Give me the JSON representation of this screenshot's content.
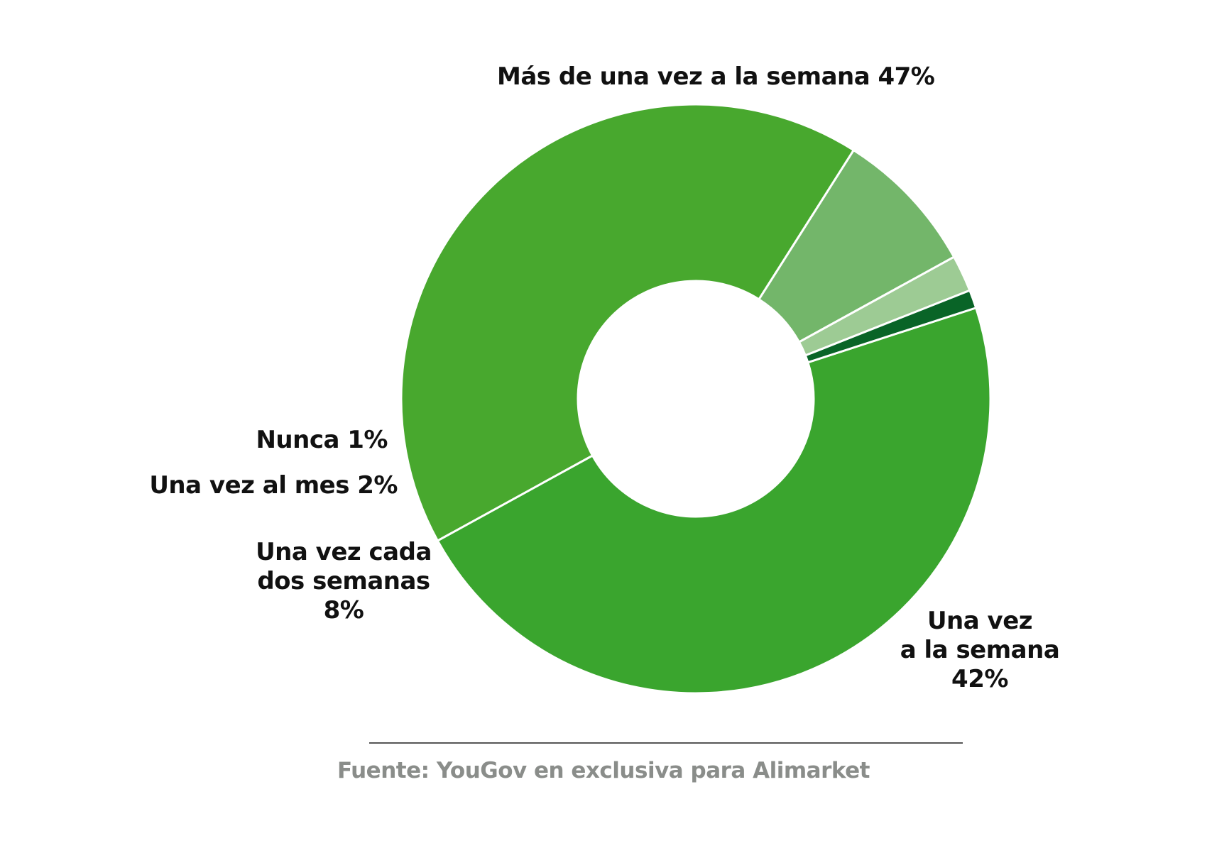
{
  "chart_data": {
    "type": "pie",
    "donut": true,
    "title": "",
    "slices": [
      {
        "label": "Más de una vez a la semana",
        "value": 47,
        "text": "Más de una vez a la semana 47%",
        "color": "#3aa52e"
      },
      {
        "label": "Una vez a la semana",
        "value": 42,
        "text_lines": [
          "Una vez",
          "a la semana",
          "42%"
        ],
        "color": "#48a82e"
      },
      {
        "label": "Una vez cada dos semanas",
        "value": 8,
        "text_lines": [
          "Una vez cada",
          "dos semanas",
          "8%"
        ],
        "color": "#73b66a"
      },
      {
        "label": "Una vez al mes",
        "value": 2,
        "text": "Una vez al mes 2%",
        "color": "#9dcb94"
      },
      {
        "label": "Nunca",
        "value": 1,
        "text": "Nunca 1%",
        "color": "#096427"
      }
    ],
    "start_angle_deg": 72,
    "direction": "clockwise"
  },
  "footer": {
    "source": "Fuente: YouGov en exclusiva para Alimarket"
  }
}
